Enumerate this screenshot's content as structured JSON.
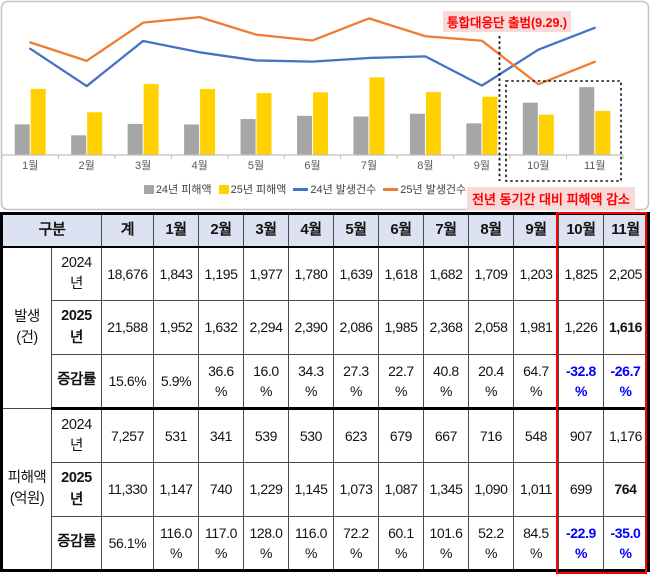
{
  "chart_data": {
    "type": "combo",
    "categories": [
      "1월",
      "2월",
      "3월",
      "4월",
      "5월",
      "6월",
      "7월",
      "8월",
      "9월",
      "10월",
      "11월"
    ],
    "series": [
      {
        "name": "24년 피해액",
        "chart": "bar",
        "color": "#A6A6A6",
        "values": [
          531,
          341,
          539,
          530,
          623,
          679,
          667,
          716,
          548,
          907,
          1176
        ]
      },
      {
        "name": "25년 피해액",
        "chart": "bar",
        "color": "#FFD100",
        "values": [
          1147,
          740,
          1229,
          1145,
          1073,
          1087,
          1345,
          1090,
          1011,
          699,
          764
        ]
      },
      {
        "name": "24년 발생건수",
        "chart": "line",
        "color": "#4472C4",
        "values": [
          1843,
          1195,
          1977,
          1780,
          1639,
          1618,
          1682,
          1709,
          1203,
          1825,
          2205
        ]
      },
      {
        "name": "25년 발생건수",
        "chart": "line",
        "color": "#ED7D31",
        "values": [
          1952,
          1632,
          2294,
          2390,
          2086,
          1985,
          2368,
          2058,
          1981,
          1226,
          1616
        ]
      }
    ],
    "ylim": [
      0,
      2600
    ],
    "grid": false,
    "legend_position": "bottom",
    "axis_color": "#BFBFBF",
    "label_color": "#595959",
    "frame_color": "#C4C4C4",
    "annotations": {
      "launch": "통합대응단 출범(9.29.)",
      "decrease": "전년 동기간 대비 피해액 감소",
      "highlight_categories": [
        "10월",
        "11월"
      ],
      "annotation_color": "#FF0000",
      "annotation_bg": "#F9DADA"
    }
  },
  "table": {
    "header": [
      "구분",
      "계",
      "1월",
      "2월",
      "3월",
      "4월",
      "5월",
      "6월",
      "7월",
      "8월",
      "9월",
      "10월",
      "11월"
    ],
    "header_bg": "#DCE2F2",
    "neg_color": "#0000FF",
    "highlight_border_color": "#FF0000",
    "sections": [
      {
        "group": "발생\n(건)",
        "rows": [
          {
            "label": "2024\n년",
            "label_bold": false,
            "cells": [
              "18,676",
              "1,843",
              "1,195",
              "1,977",
              "1,780",
              "1,639",
              "1,618",
              "1,682",
              "1,709",
              "1,203",
              "1,825",
              "2,205"
            ],
            "bold_cells": [],
            "neg_cells": []
          },
          {
            "label": "2025\n년",
            "label_bold": true,
            "cells": [
              "21,588",
              "1,952",
              "1,632",
              "2,294",
              "2,390",
              "2,086",
              "1,985",
              "2,368",
              "2,058",
              "1,981",
              "1,226",
              "1,616"
            ],
            "bold_cells": [
              11
            ],
            "neg_cells": []
          },
          {
            "label": "증감률",
            "label_bold": true,
            "cells": [
              "15.6%",
              "5.9%",
              "36.6\n%",
              "16.0\n%",
              "34.3\n%",
              "27.3\n%",
              "22.7\n%",
              "40.8\n%",
              "20.4\n%",
              "64.7\n%",
              "-32.8\n%",
              "-26.7\n%"
            ],
            "bold_cells": [],
            "neg_cells": [
              10,
              11
            ]
          }
        ]
      },
      {
        "group": "피해액\n(억원)",
        "rows": [
          {
            "label": "2024\n년",
            "label_bold": false,
            "cells": [
              "7,257",
              "531",
              "341",
              "539",
              "530",
              "623",
              "679",
              "667",
              "716",
              "548",
              "907",
              "1,176"
            ],
            "bold_cells": [],
            "neg_cells": []
          },
          {
            "label": "2025\n년",
            "label_bold": true,
            "cells": [
              "11,330",
              "1,147",
              "740",
              "1,229",
              "1,145",
              "1,073",
              "1,087",
              "1,345",
              "1,090",
              "1,011",
              "699",
              "764"
            ],
            "bold_cells": [
              11
            ],
            "neg_cells": []
          },
          {
            "label": "증감률",
            "label_bold": true,
            "cells": [
              "56.1%",
              "116.0\n%",
              "117.0\n%",
              "128.0\n%",
              "116.0\n%",
              "72.2\n%",
              "60.1\n%",
              "101.6\n%",
              "52.2\n%",
              "84.5\n%",
              "-22.9\n%",
              "-35.0\n%"
            ],
            "bold_cells": [],
            "neg_cells": [
              10,
              11
            ]
          }
        ]
      }
    ]
  }
}
